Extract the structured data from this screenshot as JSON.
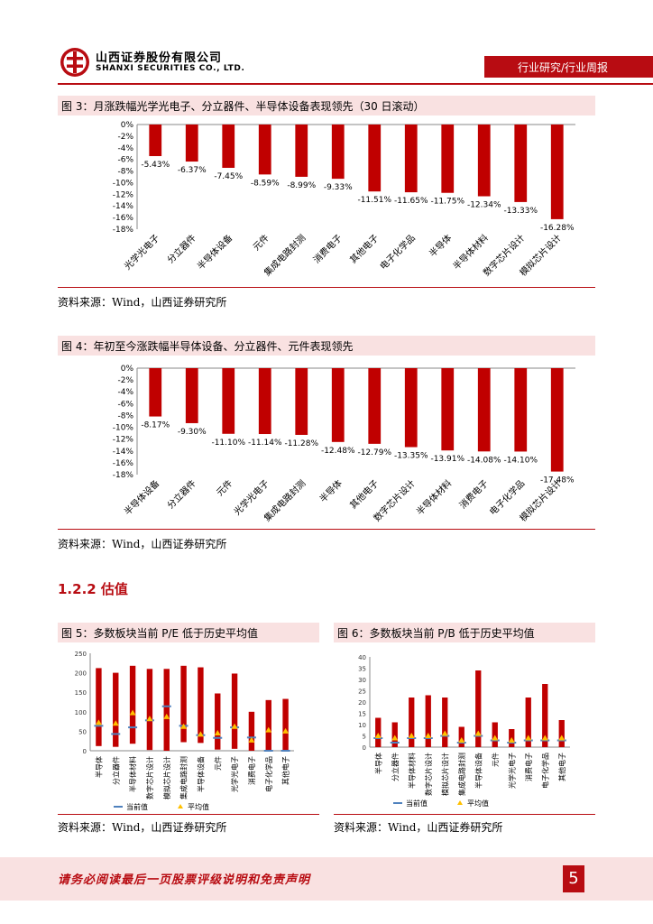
{
  "header": {
    "company_cn": "山西证券股份有限公司",
    "company_en": "SHANXI SECURITIES CO., LTD.",
    "category": "行业研究/行业周报",
    "colors": {
      "brand": "#b80c12",
      "band": "#f9e1e1"
    }
  },
  "fig3": {
    "caption": "图 3：月涨跌幅光学光电子、分立器件、半导体设备表现领先（30 日滚动）",
    "source": "资料来源：Wind，山西证券研究所"
  },
  "fig4": {
    "caption": "图 4：年初至今涨跌幅半导体设备、分立器件、元件表现领先",
    "source": "资料来源：Wind，山西证券研究所"
  },
  "section": {
    "title": "1.2.2 估值"
  },
  "fig5": {
    "caption": "图 5：多数板块当前 P/E 低于历史平均值",
    "source": "资料来源：Wind，山西证券研究所"
  },
  "fig6": {
    "caption": "图 6：多数板块当前 P/B 低于历史平均值",
    "source": "资料来源：Wind，山西证券研究所"
  },
  "footer": {
    "disclaimer": "请务必阅读最后一页股票评级说明和免责声明",
    "page": "5"
  },
  "chart_data": [
    {
      "id": "fig3",
      "type": "bar",
      "categories": [
        "光学光电子",
        "分立器件",
        "半导体设备",
        "元件",
        "集成电路封测",
        "消费电子",
        "其他电子",
        "电子化学品",
        "半导体",
        "半导体材料",
        "数字芯片设计",
        "模拟芯片设计"
      ],
      "values": [
        -5.43,
        -6.37,
        -7.45,
        -8.59,
        -8.99,
        -9.33,
        -11.51,
        -11.65,
        -11.75,
        -12.34,
        -13.33,
        -16.28
      ],
      "labels": [
        "-5.43%",
        "-6.37%",
        "-7.45%",
        "-8.59%",
        "-8.99%",
        "-9.33%",
        "-11.51%",
        "-11.65%",
        "-11.75%",
        "-12.34%",
        "-13.33%",
        "-16.28%"
      ],
      "yticks": [
        "0%",
        "-2%",
        "-4%",
        "-6%",
        "-8%",
        "-10%",
        "-12%",
        "-14%",
        "-16%",
        "-18%"
      ],
      "ylim": [
        -18,
        0
      ],
      "color": "#c00000"
    },
    {
      "id": "fig4",
      "type": "bar",
      "categories": [
        "半导体设备",
        "分立器件",
        "元件",
        "光学光电子",
        "集成电路封测",
        "半导体",
        "其他电子",
        "数字芯片设计",
        "半导体材料",
        "消费电子",
        "电子化学品",
        "模拟芯片设计"
      ],
      "values": [
        -8.17,
        -9.3,
        -11.1,
        -11.14,
        -11.28,
        -12.48,
        -12.79,
        -13.35,
        -13.91,
        -14.08,
        -14.1,
        -17.48
      ],
      "labels": [
        "-8.17%",
        "-9.30%",
        "-11.10%",
        "-11.14%",
        "-11.28%",
        "-12.48%",
        "-12.79%",
        "-13.35%",
        "-13.91%",
        "-14.08%",
        "-14.10%",
        "-17.48%"
      ],
      "yticks": [
        "0%",
        "-2%",
        "-4%",
        "-6%",
        "-8%",
        "-10%",
        "-12%",
        "-14%",
        "-16%",
        "-18%"
      ],
      "ylim": [
        -18,
        0
      ],
      "color": "#c00000"
    },
    {
      "id": "fig5",
      "type": "bar",
      "categories": [
        "半导体",
        "分立器件",
        "半导体材料",
        "数字芯片设计",
        "模拟芯片设计",
        "集成电路封测",
        "半导体设备",
        "元件",
        "光学光电子",
        "消费电子",
        "电子化学品",
        "其他电子"
      ],
      "bar_bottom": [
        12,
        10,
        18,
        2,
        0,
        22,
        20,
        3,
        5,
        0,
        0,
        0
      ],
      "bar_top": [
        212,
        200,
        218,
        210,
        210,
        218,
        214,
        147,
        198,
        100,
        130,
        133
      ],
      "current": [
        64,
        43,
        60,
        78,
        114,
        64,
        40,
        33,
        60,
        34,
        0,
        0
      ],
      "average": [
        72,
        70,
        97,
        82,
        87,
        62,
        42,
        45,
        62,
        27,
        53,
        50
      ],
      "yticks": [
        "250",
        "200",
        "150",
        "100",
        "50",
        "0"
      ],
      "ylim": [
        0,
        250
      ],
      "legend": [
        "当前值",
        "平均值"
      ],
      "colors": {
        "bar": "#c00000",
        "current": "#4f81bd",
        "average": "#ffc000"
      }
    },
    {
      "id": "fig6",
      "type": "bar",
      "categories": [
        "半导体",
        "分立器件",
        "半导体材料",
        "数字芯片设计",
        "模拟芯片设计",
        "集成电路封测",
        "半导体设备",
        "元件",
        "光学光电子",
        "消费电子",
        "电子化学品",
        "其他电子"
      ],
      "bar_bottom": [
        0,
        0,
        0,
        0,
        0,
        0,
        0,
        0,
        0,
        0,
        0,
        0
      ],
      "bar_top": [
        13,
        11,
        22,
        23,
        22,
        9,
        34,
        11,
        8,
        22,
        28,
        12
      ],
      "current": [
        4,
        2,
        4,
        4,
        5,
        2,
        5,
        3,
        2,
        3,
        3,
        3
      ],
      "average": [
        5,
        4,
        5,
        5,
        6,
        3,
        6,
        4,
        3,
        4,
        4,
        4
      ],
      "yticks": [
        "40",
        "35",
        "30",
        "25",
        "20",
        "15",
        "10",
        "5",
        "0"
      ],
      "ylim": [
        0,
        40
      ],
      "legend": [
        "当前值",
        "平均值"
      ],
      "colors": {
        "bar": "#c00000",
        "current": "#4f81bd",
        "average": "#ffc000"
      }
    }
  ]
}
